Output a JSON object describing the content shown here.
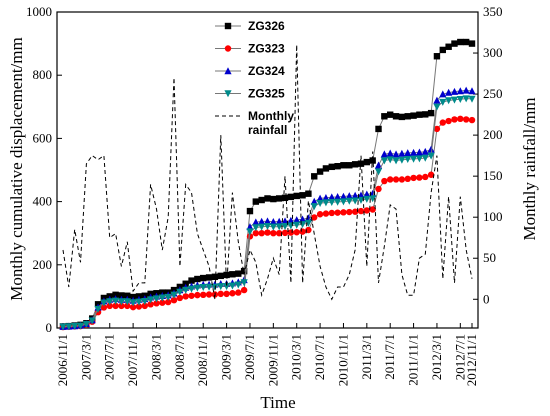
{
  "chart_data": {
    "type": "line",
    "xlabel": "Time",
    "ylabel_left": "Monthly cumulative displacement/mm",
    "ylabel_right": "Monthly rainfall/mm",
    "ylim_left": [
      0,
      1000
    ],
    "ylim_right": [
      -35,
      350
    ],
    "yticks_left": [
      0,
      200,
      400,
      600,
      800,
      1000
    ],
    "yticks_right": [
      0,
      50,
      100,
      150,
      200,
      250,
      300,
      350
    ],
    "x_tick_labels": [
      "2006/11/1",
      "2007/3/1",
      "2007/7/1",
      "2007/11/1",
      "2008/3/1",
      "2008/7/1",
      "2008/11/1",
      "2009/3/1",
      "2009/7/1",
      "2009/11/1",
      "2010/3/1",
      "2010/7/1",
      "2010/11/1",
      "2011/3/1",
      "2011/7/1",
      "2011/11/1",
      "2012/3/1",
      "2012/7/1",
      "2012/11/1"
    ],
    "legend_position": "top-center",
    "series": [
      {
        "name": "ZG326",
        "axis": "left",
        "color": "#000000",
        "marker": "square",
        "values": [
          5,
          6,
          8,
          10,
          15,
          30,
          75,
          95,
          100,
          105,
          103,
          102,
          98,
          100,
          102,
          108,
          110,
          112,
          112,
          120,
          130,
          140,
          150,
          155,
          158,
          160,
          162,
          165,
          168,
          170,
          172,
          180,
          370,
          400,
          405,
          410,
          408,
          410,
          412,
          415,
          418,
          420,
          425,
          480,
          495,
          505,
          510,
          512,
          515,
          515,
          518,
          520,
          525,
          530,
          630,
          670,
          675,
          670,
          668,
          670,
          672,
          675,
          676,
          680,
          860,
          880,
          890,
          900,
          905,
          905,
          900
        ]
      },
      {
        "name": "ZG323",
        "axis": "left",
        "color": "#ff0000",
        "marker": "circle",
        "values": [
          3,
          4,
          5,
          6,
          10,
          20,
          50,
          65,
          70,
          70,
          70,
          70,
          66,
          68,
          70,
          75,
          78,
          80,
          82,
          88,
          95,
          100,
          102,
          104,
          105,
          106,
          106,
          108,
          108,
          110,
          112,
          120,
          290,
          300,
          300,
          302,
          300,
          300,
          301,
          302,
          303,
          305,
          310,
          350,
          360,
          362,
          364,
          365,
          366,
          367,
          368,
          370,
          372,
          375,
          440,
          465,
          470,
          470,
          470,
          472,
          475,
          476,
          478,
          485,
          630,
          650,
          655,
          660,
          662,
          660,
          658
        ]
      },
      {
        "name": "ZG324",
        "axis": "left",
        "color": "#0000cc",
        "marker": "triangle-up",
        "values": [
          4,
          5,
          6,
          8,
          13,
          25,
          65,
          85,
          90,
          92,
          90,
          90,
          87,
          90,
          92,
          97,
          100,
          102,
          104,
          110,
          120,
          128,
          132,
          135,
          137,
          138,
          138,
          140,
          140,
          142,
          145,
          152,
          320,
          335,
          337,
          338,
          336,
          337,
          338,
          340,
          342,
          344,
          348,
          400,
          410,
          412,
          414,
          415,
          416,
          418,
          419,
          420,
          423,
          425,
          515,
          550,
          553,
          550,
          552,
          554,
          555,
          556,
          558,
          565,
          720,
          740,
          745,
          748,
          750,
          752,
          750
        ]
      },
      {
        "name": "ZG325",
        "axis": "left",
        "color": "#008b8b",
        "marker": "triangle-down",
        "values": [
          4,
          5,
          6,
          7,
          12,
          23,
          60,
          80,
          84,
          86,
          84,
          84,
          81,
          83,
          85,
          90,
          93,
          96,
          98,
          105,
          114,
          120,
          124,
          127,
          129,
          130,
          130,
          132,
          132,
          134,
          137,
          144,
          305,
          318,
          320,
          322,
          320,
          321,
          322,
          324,
          326,
          328,
          332,
          385,
          395,
          397,
          398,
          399,
          400,
          402,
          403,
          405,
          408,
          410,
          495,
          530,
          533,
          530,
          532,
          534,
          535,
          536,
          538,
          545,
          700,
          715,
          720,
          722,
          724,
          726,
          725
        ]
      },
      {
        "name": "Monthly rainfall",
        "axis": "right",
        "color": "#000000",
        "dash": "4 3",
        "values": [
          60,
          15,
          85,
          45,
          165,
          175,
          170,
          175,
          75,
          80,
          40,
          70,
          10,
          20,
          20,
          140,
          110,
          60,
          100,
          270,
          40,
          140,
          130,
          80,
          60,
          40,
          0,
          200,
          15,
          130,
          70,
          30,
          60,
          45,
          5,
          25,
          50,
          30,
          150,
          20,
          310,
          20,
          120,
          80,
          40,
          15,
          0,
          15,
          15,
          30,
          60,
          175,
          40,
          180,
          20,
          65,
          115,
          110,
          30,
          5,
          5,
          50,
          55,
          130,
          175,
          25,
          125,
          20,
          125,
          60,
          25
        ]
      }
    ]
  }
}
